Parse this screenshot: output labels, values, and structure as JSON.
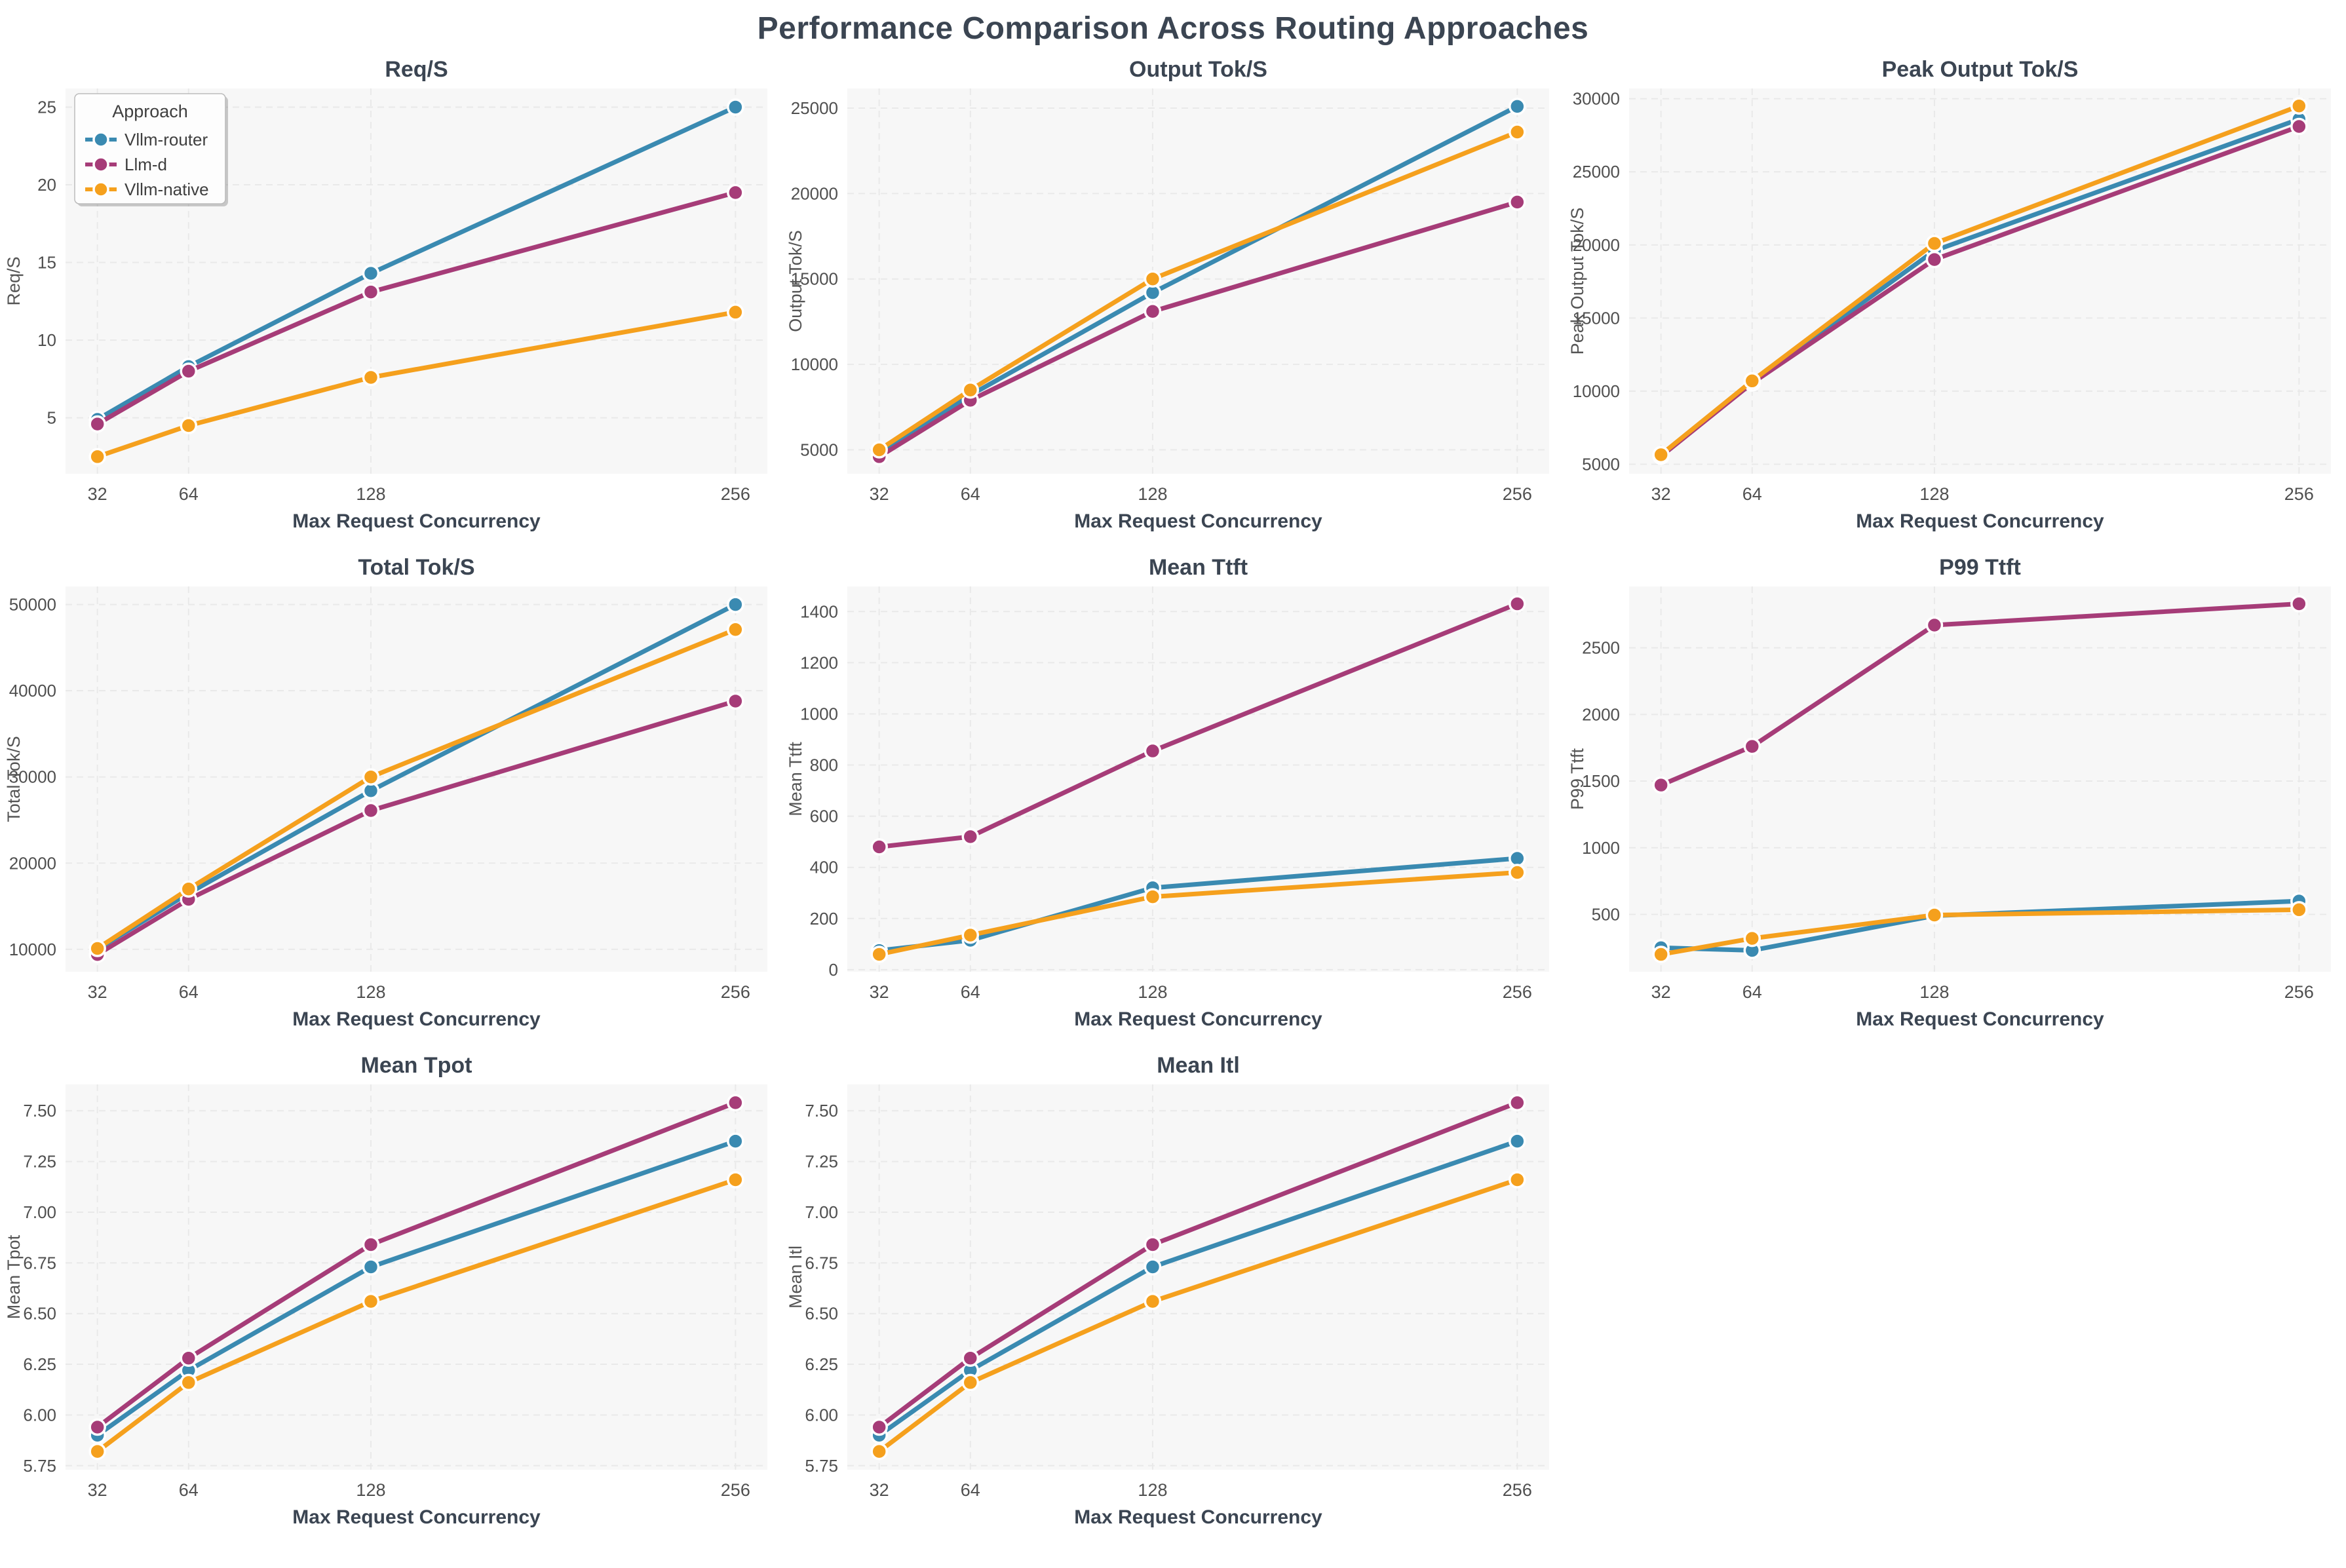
{
  "page": {
    "title": "Performance Comparison Across Routing Approaches"
  },
  "style": {
    "accent_blue": "#3a8ab1",
    "accent_magenta": "#a63c78",
    "accent_orange": "#f5a01d",
    "title_color": "#3b4552",
    "tick_color": "#4f4f4f",
    "label_color": "#555555",
    "axes_bg": "#f7f7f7",
    "grid_color": "#e9e9e9",
    "legend_border": "#bbbbbb",
    "legend_text": "#3f3f3f"
  },
  "legend": {
    "title": "Approach",
    "entries": [
      "Vllm-router",
      "Llm-d",
      "Vllm-native"
    ]
  },
  "x_axis": {
    "label": "Max Request Concurrency",
    "ticks": [
      32,
      64,
      128,
      256
    ],
    "lim": [
      20.8,
      267.2
    ]
  },
  "chart_data": [
    {
      "type": "line",
      "title": "Req/S",
      "ylabel": "Req/S",
      "xlabel": "Max Request Concurrency",
      "x": [
        32,
        64,
        128,
        256
      ],
      "ylim": [
        1.4,
        26.2
      ],
      "ytick_values": [
        5,
        10,
        15,
        20,
        25
      ],
      "ytick_labels": [
        "5",
        "10",
        "15",
        "20",
        "25"
      ],
      "grid": true,
      "legend": true,
      "series": [
        {
          "name": "Vllm-router",
          "color": "accent_blue",
          "values": [
            4.9,
            8.3,
            14.3,
            25.0
          ]
        },
        {
          "name": "Llm-d",
          "color": "accent_magenta",
          "values": [
            4.6,
            8.0,
            13.1,
            19.5
          ]
        },
        {
          "name": "Vllm-native",
          "color": "accent_orange",
          "values": [
            2.5,
            4.5,
            7.6,
            11.8
          ]
        }
      ]
    },
    {
      "type": "line",
      "title": "Output Tok/S",
      "ylabel": "Output Tok/S",
      "xlabel": "Max Request Concurrency",
      "x": [
        32,
        64,
        128,
        256
      ],
      "ylim": [
        3600,
        26150
      ],
      "ytick_values": [
        5000,
        10000,
        15000,
        20000,
        25000
      ],
      "ytick_labels": [
        "5000",
        "10000",
        "15000",
        "20000",
        "25000"
      ],
      "grid": true,
      "legend": false,
      "series": [
        {
          "name": "Vllm-router",
          "color": "accent_blue",
          "values": [
            4900,
            8200,
            14200,
            25100
          ]
        },
        {
          "name": "Llm-d",
          "color": "accent_magenta",
          "values": [
            4600,
            7900,
            13100,
            19500
          ]
        },
        {
          "name": "Vllm-native",
          "color": "accent_orange",
          "values": [
            5000,
            8500,
            15000,
            23600
          ]
        }
      ]
    },
    {
      "type": "line",
      "title": "Peak Output Tok/S",
      "ylabel": "Peak Output Tok/S",
      "xlabel": "Max Request Concurrency",
      "x": [
        32,
        64,
        128,
        256
      ],
      "ylim": [
        4350,
        30700
      ],
      "ytick_values": [
        5000,
        10000,
        15000,
        20000,
        25000,
        30000
      ],
      "ytick_labels": [
        "5000",
        "10000",
        "15000",
        "20000",
        "25000",
        "30000"
      ],
      "grid": true,
      "legend": false,
      "series": [
        {
          "name": "Vllm-router",
          "color": "accent_blue",
          "values": [
            5600,
            10600,
            19600,
            28600
          ]
        },
        {
          "name": "Llm-d",
          "color": "accent_magenta",
          "values": [
            5550,
            10550,
            19000,
            28100
          ]
        },
        {
          "name": "Vllm-native",
          "color": "accent_orange",
          "values": [
            5650,
            10700,
            20100,
            29500
          ]
        }
      ]
    },
    {
      "type": "line",
      "title": "Total Tok/S",
      "ylabel": "Total Tok/S",
      "xlabel": "Max Request Concurrency",
      "x": [
        32,
        64,
        128,
        256
      ],
      "ylim": [
        7400,
        52100
      ],
      "ytick_values": [
        10000,
        20000,
        30000,
        40000,
        50000
      ],
      "ytick_labels": [
        "10000",
        "20000",
        "30000",
        "40000",
        "50000"
      ],
      "grid": true,
      "legend": false,
      "series": [
        {
          "name": "Vllm-router",
          "color": "accent_blue",
          "values": [
            10000,
            16500,
            28400,
            50000
          ]
        },
        {
          "name": "Llm-d",
          "color": "accent_magenta",
          "values": [
            9400,
            15800,
            26100,
            38800
          ]
        },
        {
          "name": "Vllm-native",
          "color": "accent_orange",
          "values": [
            10100,
            17000,
            30000,
            47100
          ]
        }
      ]
    },
    {
      "type": "line",
      "title": "Mean Ttft",
      "ylabel": "Mean Ttft",
      "xlabel": "Max Request Concurrency",
      "x": [
        32,
        64,
        128,
        256
      ],
      "ylim": [
        -8,
        1498
      ],
      "ytick_values": [
        0,
        200,
        400,
        600,
        800,
        1000,
        1200,
        1400
      ],
      "ytick_labels": [
        "0",
        "200",
        "400",
        "600",
        "800",
        "1000",
        "1200",
        "1400"
      ],
      "grid": true,
      "legend": false,
      "series": [
        {
          "name": "Vllm-router",
          "color": "accent_blue",
          "values": [
            75,
            115,
            320,
            435
          ]
        },
        {
          "name": "Llm-d",
          "color": "accent_magenta",
          "values": [
            480,
            520,
            855,
            1430
          ]
        },
        {
          "name": "Vllm-native",
          "color": "accent_orange",
          "values": [
            60,
            135,
            285,
            380
          ]
        }
      ]
    },
    {
      "type": "line",
      "title": "P99 Ttft",
      "ylabel": "P99 Ttft",
      "xlabel": "Max Request Concurrency",
      "x": [
        32,
        64,
        128,
        256
      ],
      "ylim": [
        70,
        2960
      ],
      "ytick_values": [
        500,
        1000,
        1500,
        2000,
        2500
      ],
      "ytick_labels": [
        "500",
        "1000",
        "1500",
        "2000",
        "2500"
      ],
      "grid": true,
      "legend": false,
      "series": [
        {
          "name": "Vllm-router",
          "color": "accent_blue",
          "values": [
            250,
            230,
            490,
            600
          ]
        },
        {
          "name": "Llm-d",
          "color": "accent_magenta",
          "values": [
            1470,
            1760,
            2670,
            2830
          ]
        },
        {
          "name": "Vllm-native",
          "color": "accent_orange",
          "values": [
            200,
            320,
            495,
            535
          ]
        }
      ]
    },
    {
      "type": "line",
      "title": "Mean Tpot",
      "ylabel": "Mean Tpot",
      "xlabel": "Max Request Concurrency",
      "x": [
        32,
        64,
        128,
        256
      ],
      "ylim": [
        5.73,
        7.63
      ],
      "ytick_values": [
        5.75,
        6.0,
        6.25,
        6.5,
        6.75,
        7.0,
        7.25,
        7.5
      ],
      "ytick_labels": [
        "5.75",
        "6.00",
        "6.25",
        "6.50",
        "6.75",
        "7.00",
        "7.25",
        "7.50"
      ],
      "grid": true,
      "legend": false,
      "series": [
        {
          "name": "Vllm-router",
          "color": "accent_blue",
          "values": [
            5.9,
            6.22,
            6.73,
            7.35
          ]
        },
        {
          "name": "Llm-d",
          "color": "accent_magenta",
          "values": [
            5.94,
            6.28,
            6.84,
            7.54
          ]
        },
        {
          "name": "Vllm-native",
          "color": "accent_orange",
          "values": [
            5.82,
            6.16,
            6.56,
            7.16
          ]
        }
      ]
    },
    {
      "type": "line",
      "title": "Mean Itl",
      "ylabel": "Mean Itl",
      "xlabel": "Max Request Concurrency",
      "x": [
        32,
        64,
        128,
        256
      ],
      "ylim": [
        5.73,
        7.63
      ],
      "ytick_values": [
        5.75,
        6.0,
        6.25,
        6.5,
        6.75,
        7.0,
        7.25,
        7.5
      ],
      "ytick_labels": [
        "5.75",
        "6.00",
        "6.25",
        "6.50",
        "6.75",
        "7.00",
        "7.25",
        "7.50"
      ],
      "grid": true,
      "legend": false,
      "series": [
        {
          "name": "Vllm-router",
          "color": "accent_blue",
          "values": [
            5.9,
            6.22,
            6.73,
            7.35
          ]
        },
        {
          "name": "Llm-d",
          "color": "accent_magenta",
          "values": [
            5.94,
            6.28,
            6.84,
            7.54
          ]
        },
        {
          "name": "Vllm-native",
          "color": "accent_orange",
          "values": [
            5.82,
            6.16,
            6.56,
            7.16
          ]
        }
      ]
    }
  ]
}
